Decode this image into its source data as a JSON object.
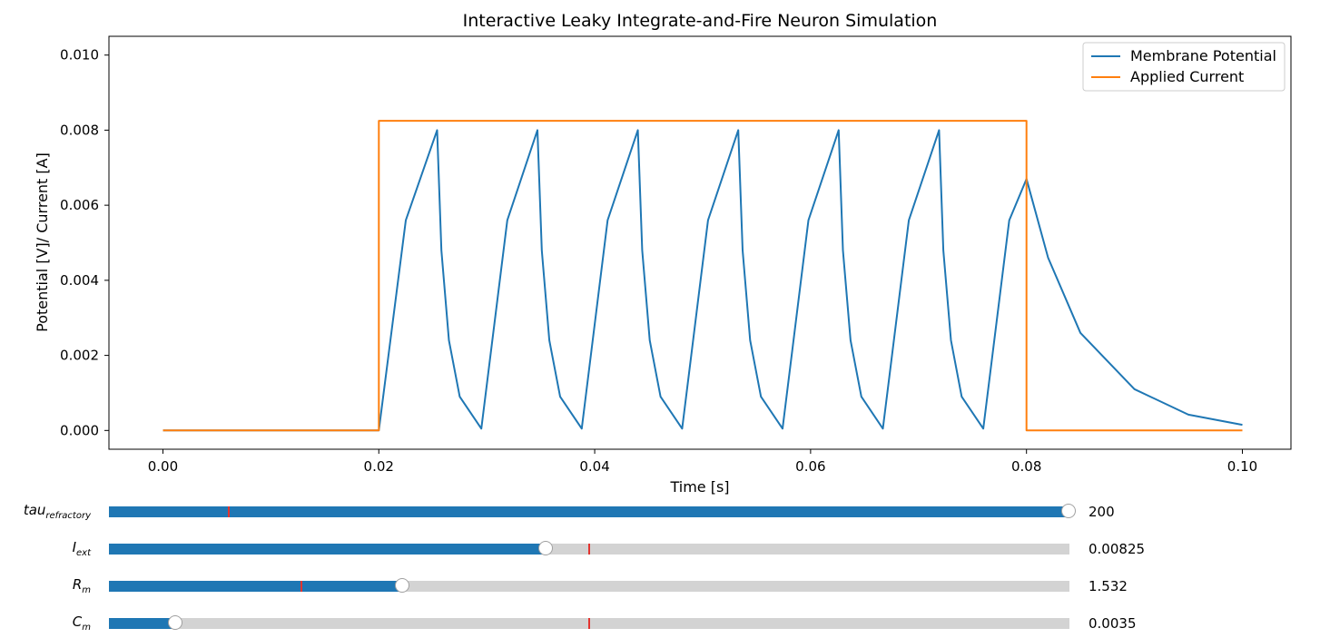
{
  "chart_data": {
    "type": "line",
    "title": "Interactive Leaky Integrate-and-Fire Neuron Simulation",
    "xlabel": "Time [s]",
    "ylabel": "Potential [V]/ Current [A]",
    "xlim": [
      -0.005,
      0.1045
    ],
    "ylim": [
      -0.0005,
      0.0105
    ],
    "x_ticks": [
      "0.00",
      "0.02",
      "0.04",
      "0.06",
      "0.08",
      "0.10"
    ],
    "y_ticks": [
      "0.000",
      "0.002",
      "0.004",
      "0.006",
      "0.008",
      "0.010"
    ],
    "grid": false,
    "legend_position": "top-right",
    "series": [
      {
        "name": "Membrane Potential",
        "color": "#1f77b4",
        "x": [
          0.0,
          0.02,
          0.0225,
          0.0254,
          0.0258,
          0.0265,
          0.0275,
          0.0295,
          0.0319,
          0.0347,
          0.0351,
          0.0358,
          0.0368,
          0.0388,
          0.0412,
          0.044,
          0.0444,
          0.0451,
          0.0461,
          0.0481,
          0.0505,
          0.0533,
          0.0537,
          0.0544,
          0.0554,
          0.0574,
          0.0598,
          0.0626,
          0.063,
          0.0637,
          0.0647,
          0.0667,
          0.0691,
          0.0719,
          0.0723,
          0.073,
          0.074,
          0.076,
          0.0784,
          0.08,
          0.082,
          0.085,
          0.09,
          0.095,
          0.1
        ],
        "y": [
          0.0,
          0.0,
          0.0056,
          0.008,
          0.0048,
          0.0024,
          0.0009,
          5e-05,
          0.0056,
          0.008,
          0.0048,
          0.0024,
          0.0009,
          5e-05,
          0.0056,
          0.008,
          0.0048,
          0.0024,
          0.0009,
          5e-05,
          0.0056,
          0.008,
          0.0048,
          0.0024,
          0.0009,
          5e-05,
          0.0056,
          0.008,
          0.0048,
          0.0024,
          0.0009,
          5e-05,
          0.0056,
          0.008,
          0.0048,
          0.0024,
          0.0009,
          5e-05,
          0.0056,
          0.0067,
          0.0046,
          0.0026,
          0.0011,
          0.00042,
          0.00015
        ]
      },
      {
        "name": "Applied Current",
        "color": "#ff7f0e",
        "x": [
          0.0,
          0.02,
          0.02,
          0.08,
          0.08,
          0.1
        ],
        "y": [
          0.0,
          0.0,
          0.00825,
          0.00825,
          0.0,
          0.0
        ]
      }
    ]
  },
  "sliders": [
    {
      "label": "tau",
      "subscript": "refractory",
      "value_text": "200",
      "fraction": 1.0,
      "init_fraction": 0.125
    },
    {
      "label": "I",
      "subscript": "ext",
      "value_text": "0.00825",
      "fraction": 0.456,
      "init_fraction": 0.5
    },
    {
      "label": "R",
      "subscript": "m",
      "value_text": "1.532",
      "fraction": 0.306,
      "init_fraction": 0.2
    },
    {
      "label": "C",
      "subscript": "m",
      "value_text": "0.0035",
      "fraction": 0.07,
      "init_fraction": 0.5
    }
  ]
}
